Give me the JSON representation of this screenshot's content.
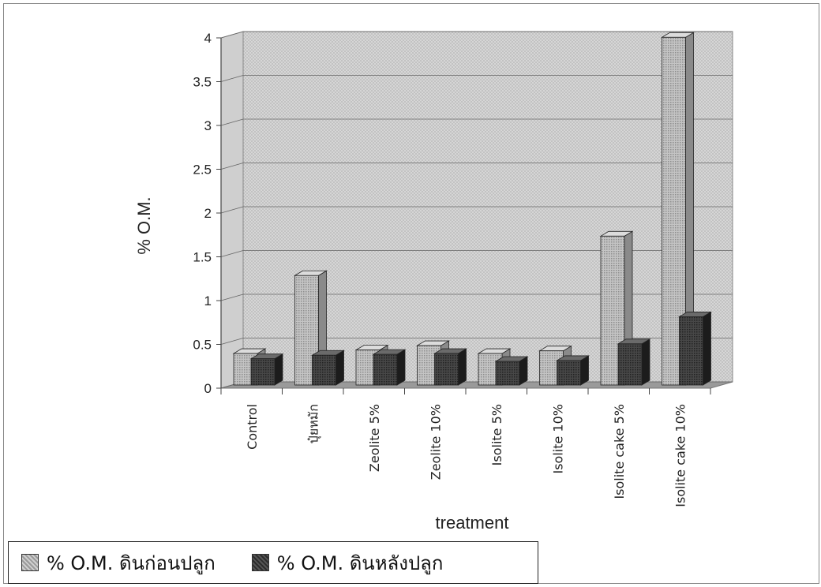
{
  "chart_data": {
    "type": "bar",
    "title": "",
    "xlabel": "treatment",
    "ylabel": "% O.M.",
    "ylim": [
      0,
      4
    ],
    "yticks": [
      "0",
      "0.5",
      "1",
      "1.5",
      "2",
      "2.5",
      "3",
      "3.5",
      "4"
    ],
    "grid": true,
    "legend_position": "bottom-left",
    "categories": [
      "Control",
      "ปุ๋ยหมัก",
      "Zeolite 5%",
      "Zeolite 10%",
      "Isolite 5%",
      "Isolite 10%",
      "Isolite cake 5%",
      "Isolite cake 10%"
    ],
    "series": [
      {
        "name": "% O.M. ดินก่อนปลูก",
        "values": [
          0.36,
          1.25,
          0.4,
          0.45,
          0.36,
          0.39,
          1.7,
          3.97
        ],
        "color": "#b5b5b5"
      },
      {
        "name": "% O.M. ดินหลังปลูก",
        "values": [
          0.3,
          0.34,
          0.35,
          0.36,
          0.27,
          0.28,
          0.47,
          0.78
        ],
        "color": "#3a3a3a"
      }
    ]
  }
}
